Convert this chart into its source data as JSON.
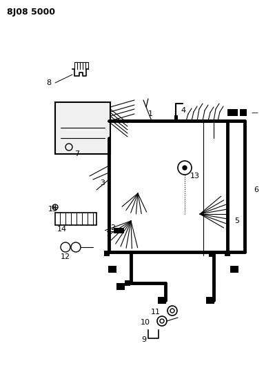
{
  "title": "8J08 5000",
  "bg_color": "#ffffff",
  "line_color": "#000000",
  "title_fontsize": 11,
  "fig_width": 3.99,
  "fig_height": 5.33,
  "dpi": 100
}
